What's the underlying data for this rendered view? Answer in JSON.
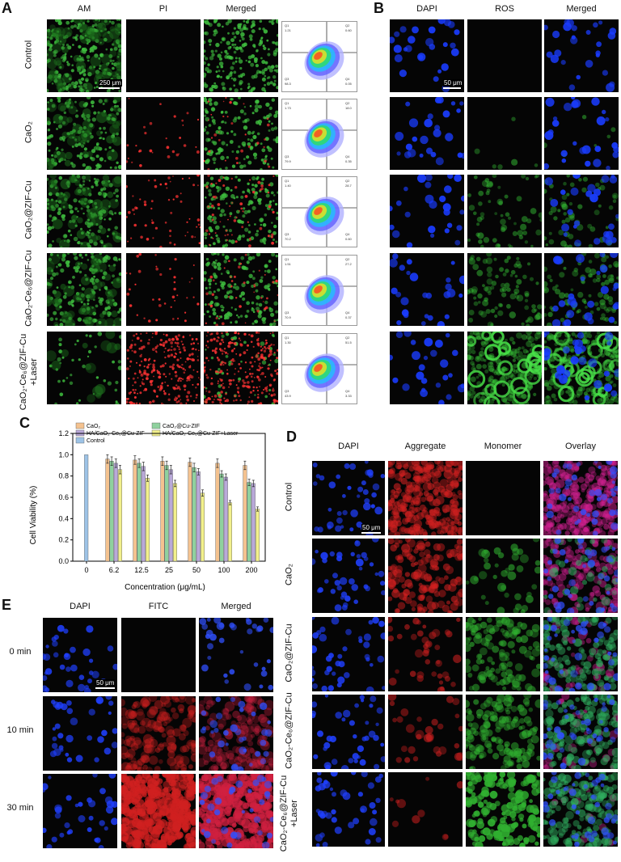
{
  "panels": {
    "A": {
      "label": "A",
      "columns": [
        "AM",
        "PI",
        "Merged"
      ],
      "rows": [
        "Control",
        "CaO₂",
        "CaO₂@ZIF-Cu",
        "CaO₂-Ce₆@ZIF-Cu",
        "CaO₂-Ce₆@ZIF-Cu\n+Laser"
      ],
      "scalebar": "250 μm",
      "flow_quadrant_values": [
        {
          "q1": "Q1\n1.21",
          "q2": "Q2\n0.60",
          "q3": "Q3\n98.3",
          "q4": "Q4\n0.05"
        },
        {
          "q1": "Q1\n1.73",
          "q2": "Q2\n18.0",
          "q3": "Q3\n79.9",
          "q4": "Q4\n0.35"
        },
        {
          "q1": "Q1\n1.40",
          "q2": "Q2\n28.7",
          "q3": "Q3\n70.2",
          "q4": "Q4\n0.60"
        },
        {
          "q1": "Q1\n1.51",
          "q2": "Q2\n27.2",
          "q3": "Q3\n70.9",
          "q4": "Q4\n0.37"
        },
        {
          "q1": "Q1\n1.30",
          "q2": "Q2\n51.5",
          "q3": "Q3\n43.9",
          "q4": "Q4\n3.33"
        }
      ]
    },
    "B": {
      "label": "B",
      "columns": [
        "DAPI",
        "ROS",
        "Merged"
      ],
      "scalebar": "50 μm"
    },
    "C": {
      "label": "C",
      "legend": [
        "CaO₂",
        "CaO₂@Cu-ZIF",
        "HA/CaO₂-Ce₆@Cu-ZIF",
        "HA/CaO₂-Ce₆@Cu-ZIF+Laser",
        "Control"
      ]
    },
    "D": {
      "label": "D",
      "columns": [
        "DAPI",
        "Aggregate",
        "Monomer",
        "Overlay"
      ],
      "rows": [
        "Control",
        "CaO₂",
        "CaO₂@ZIF-Cu",
        "CaO₂-Ce₆@ZIF-Cu",
        "CaO₂-Ce₆@ZIF-Cu\n+Laser"
      ],
      "scalebar": "50 μm"
    },
    "E": {
      "label": "E",
      "columns": [
        "DAPI",
        "FITC",
        "Merged"
      ],
      "rows": [
        "0 min",
        "10 min",
        "30 min"
      ],
      "scalebar": "50 μm"
    }
  },
  "chart_data": {
    "type": "bar",
    "categories": [
      "0",
      "6.2",
      "12.5",
      "25",
      "50",
      "100",
      "200"
    ],
    "xlabel": "Concentration (μg/mL)",
    "ylabel": "Cell Viability (%)",
    "ylim": [
      0,
      1.2
    ],
    "yticks": [
      "0.0",
      "0.2",
      "0.4",
      "0.6",
      "0.8",
      "1.0",
      "1.2"
    ],
    "series": [
      {
        "name": "Control",
        "color": "#9dc3e6",
        "values": [
          1.0,
          null,
          null,
          null,
          null,
          null,
          null
        ],
        "errors": [
          0,
          0,
          0,
          0,
          0,
          0,
          0
        ]
      },
      {
        "name": "CaO₂",
        "color": "#f4c28f",
        "values": [
          null,
          0.96,
          0.95,
          0.94,
          0.93,
          0.92,
          0.9
        ],
        "errors": [
          0,
          0.04,
          0.04,
          0.04,
          0.04,
          0.04,
          0.04
        ]
      },
      {
        "name": "CaO₂@Cu-ZIF",
        "color": "#8fd19e",
        "values": [
          null,
          0.94,
          0.92,
          0.9,
          0.88,
          0.82,
          0.74
        ],
        "errors": [
          0,
          0.04,
          0.04,
          0.04,
          0.04,
          0.03,
          0.03
        ]
      },
      {
        "name": "HA/CaO₂-Ce₆@Cu-ZIF",
        "color": "#b9a9d9",
        "values": [
          null,
          0.92,
          0.89,
          0.86,
          0.84,
          0.79,
          0.73
        ],
        "errors": [
          0,
          0.04,
          0.04,
          0.04,
          0.03,
          0.03,
          0.03
        ]
      },
      {
        "name": "HA/CaO₂-Ce₆@Cu-ZIF+Laser",
        "color": "#f2f08c",
        "values": [
          null,
          0.86,
          0.78,
          0.73,
          0.64,
          0.55,
          0.49
        ],
        "errors": [
          0,
          0.04,
          0.03,
          0.03,
          0.03,
          0.02,
          0.02
        ]
      }
    ]
  }
}
